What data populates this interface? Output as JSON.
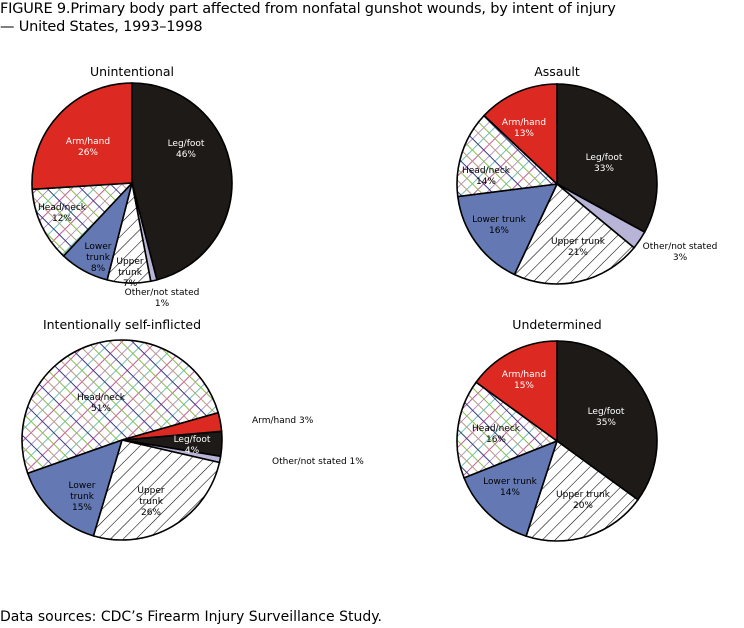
{
  "title_line1": "FIGURE 9.Primary body part affected from nonfatal gunshot wounds, by intent of injury",
  "title_line2": "— United States, 1993–1998",
  "source": "Data sources: CDC’s Firearm Injury Surveillance Study.",
  "colors": {
    "Leg/foot": "#1e1a17",
    "Other/not stated": "#b8b4d8",
    "Upper trunk": "pattern-diagonal",
    "Lower trunk": "#6479b3",
    "Head/neck": "pattern-crosshatch-multicolor",
    "Arm/hand": "#dc2a22"
  },
  "chart_data": [
    {
      "type": "pie",
      "title": "Unintentional",
      "categories": [
        "Leg/foot",
        "Other/not stated",
        "Upper trunk",
        "Lower trunk",
        "Head/neck",
        "Arm/hand"
      ],
      "values": [
        46,
        1,
        7,
        8,
        12,
        26
      ],
      "labels": [
        "Leg/foot 46%",
        "Other/not stated 1%",
        "Upper trunk 7%",
        "Lower trunk 8%",
        "Head/neck 12%",
        "Arm/hand 26%"
      ]
    },
    {
      "type": "pie",
      "title": "Assault",
      "categories": [
        "Leg/foot",
        "Other/not stated",
        "Upper trunk",
        "Lower trunk",
        "Head/neck",
        "Arm/hand"
      ],
      "values": [
        33,
        3,
        21,
        16,
        14,
        13
      ],
      "labels": [
        "Leg/foot 33%",
        "Other/not stated 3%",
        "Upper trunk 21%",
        "Lower trunk 16%",
        "Head/neck 14%",
        "Arm/hand 13%"
      ]
    },
    {
      "type": "pie",
      "title": "Intentionally self-inflicted",
      "categories": [
        "Leg/foot",
        "Other/not stated",
        "Upper trunk",
        "Lower trunk",
        "Head/neck",
        "Arm/hand"
      ],
      "values": [
        4,
        1,
        26,
        15,
        51,
        3
      ],
      "labels": [
        "Leg/foot 4%",
        "Other/not stated 1%",
        "Upper trunk 26%",
        "Lower trunk 15%",
        "Head/neck 51%",
        "Arm/hand 3%"
      ]
    },
    {
      "type": "pie",
      "title": "Undetermined",
      "categories": [
        "Leg/foot",
        "Other/not stated",
        "Upper trunk",
        "Lower trunk",
        "Head/neck",
        "Arm/hand"
      ],
      "values": [
        35,
        0,
        20,
        14,
        16,
        15
      ],
      "labels": [
        "Leg/foot 35%",
        "",
        "Upper trunk 20%",
        "Lower trunk 14%",
        "Head/neck 16%",
        "Arm/hand 15%"
      ]
    }
  ]
}
